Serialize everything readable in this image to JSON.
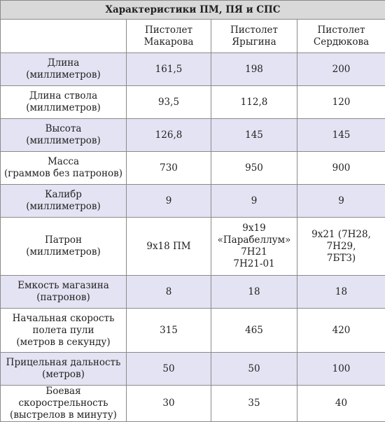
{
  "table": {
    "title": "Характеристики ПМ, ПЯ и СПС",
    "columns": [
      "",
      "Пистолет\nМакарова",
      "Пистолет\nЯрыгина",
      "Пистолет\nСердюкова"
    ],
    "rows": [
      {
        "label": "Длина\n(миллиметров)",
        "values": [
          "161,5",
          "198",
          "200"
        ],
        "shaded": true
      },
      {
        "label": "Длина ствола\n(миллиметров)",
        "values": [
          "93,5",
          "112,8",
          "120"
        ],
        "shaded": false
      },
      {
        "label": "Высота\n(миллиметров)",
        "values": [
          "126,8",
          "145",
          "145"
        ],
        "shaded": true
      },
      {
        "label": "Масса\n(граммов без патронов)",
        "values": [
          "730",
          "950",
          "900"
        ],
        "shaded": false
      },
      {
        "label": "Калибр\n(миллиметров)",
        "values": [
          "9",
          "9",
          "9"
        ],
        "shaded": true
      },
      {
        "label": "Патрон\n(миллиметров)",
        "values": [
          "9x18 ПМ",
          "9x19\n«Парабеллум»\n7Н21\n7Н21-01",
          "9x21 (7Н28, 7Н29,\n7БТЗ)"
        ],
        "shaded": false
      },
      {
        "label": "Емкость магазина\n(патронов)",
        "values": [
          "8",
          "18",
          "18"
        ],
        "shaded": true
      },
      {
        "label": "Начальная скорость\nполета пули\n(метров в секунду)",
        "values": [
          "315",
          "465",
          "420"
        ],
        "shaded": false
      },
      {
        "label": "Прицельная дальность\n(метров)",
        "values": [
          "50",
          "50",
          "100"
        ],
        "shaded": true
      },
      {
        "label": "Боевая скорострельность\n(выстрелов в минуту)",
        "values": [
          "30",
          "35",
          "40"
        ],
        "shaded": false
      }
    ]
  },
  "colors": {
    "title_bg": "#d9d9d9",
    "shaded_row_bg": "#e3e3f3",
    "plain_row_bg": "#ffffff",
    "border": "#8a8a8a"
  }
}
